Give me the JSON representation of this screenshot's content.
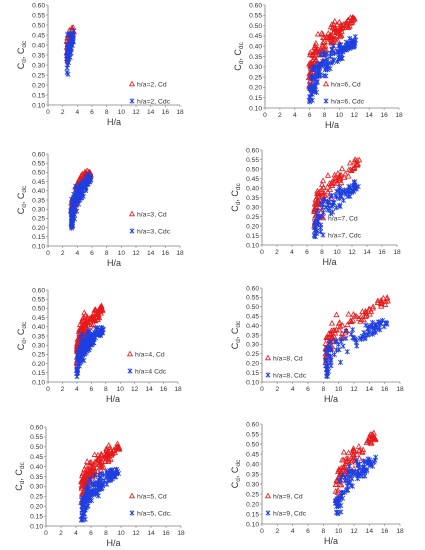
{
  "chart_data": [
    {
      "type": "scatter",
      "h": 2,
      "ylabel_main": "C",
      "ylabel_sub1": "d",
      "ylabel_sep": ", C",
      "ylabel_sub2": "dc",
      "xlabel": "H/a",
      "xlim": [
        0,
        18
      ],
      "ylim": [
        0.1,
        0.6
      ],
      "xticks": [
        "0",
        "2",
        "4",
        "6",
        "8",
        "10",
        "12",
        "14",
        "16",
        "18"
      ],
      "yticks": [
        "0.10",
        "0.15",
        "0.20",
        "0.25",
        "0.30",
        "0.35",
        "0.40",
        "0.45",
        "0.50",
        "0.55",
        "0.60"
      ],
      "legend_position": "center-right",
      "series": [
        {
          "name": "h/a=2, Cd",
          "marker": "triangle",
          "color": "#E8191A"
        },
        {
          "name": "h/a=2, Cdc",
          "marker": "star",
          "color": "#1F3FE0"
        }
      ]
    },
    {
      "type": "scatter",
      "h": 6,
      "ylabel_main": "C",
      "ylabel_sub1": "d",
      "ylabel_sep": ", C",
      "ylabel_sub2": "dc",
      "xlabel": "H/a",
      "xlim": [
        0,
        18
      ],
      "ylim": [
        0.1,
        0.6
      ],
      "xticks": [
        "0",
        "2",
        "4",
        "6",
        "8",
        "10",
        "12",
        "14",
        "16",
        "18"
      ],
      "yticks": [
        "0.10",
        "0.15",
        "0.20",
        "0.25",
        "0.30",
        "0.35",
        "0.40",
        "0.45",
        "0.50",
        "0.55",
        "0.60"
      ],
      "legend_position": "bottom-right",
      "series": [
        {
          "name": "h/a=6, Cd",
          "marker": "triangle",
          "color": "#E8191A"
        },
        {
          "name": "h/a=6, Cdc",
          "marker": "star",
          "color": "#1F3FE0"
        }
      ]
    },
    {
      "type": "scatter",
      "h": 3,
      "ylabel_main": "C",
      "ylabel_sub1": "d",
      "ylabel_sep": ", C",
      "ylabel_sub2": "dc",
      "xlabel": "H/a",
      "xlim": [
        0,
        18
      ],
      "ylim": [
        0.1,
        0.6
      ],
      "xticks": [
        "0",
        "2",
        "4",
        "6",
        "8",
        "10",
        "12",
        "14",
        "16",
        "18"
      ],
      "yticks": [
        "0.10",
        "0.15",
        "0.20",
        "0.25",
        "0.30",
        "0.35",
        "0.40",
        "0.45",
        "0.50",
        "0.55",
        "0.60"
      ],
      "legend_position": "center-right",
      "series": [
        {
          "name": "h/a=3, Cd",
          "marker": "triangle",
          "color": "#E8191A"
        },
        {
          "name": "h/a=3, Cdc",
          "marker": "star",
          "color": "#1F3FE0"
        }
      ]
    },
    {
      "type": "scatter",
      "h": 7,
      "ylabel_main": "C",
      "ylabel_sub1": "d",
      "ylabel_sep": ", C",
      "ylabel_sub2": "dc",
      "xlabel": "H/a",
      "xlim": [
        0,
        18
      ],
      "ylim": [
        0.1,
        0.6
      ],
      "xticks": [
        "0",
        "2",
        "4",
        "6",
        "8",
        "10",
        "12",
        "14",
        "16",
        "18"
      ],
      "yticks": [
        "0.10",
        "0.15",
        "0.20",
        "0.25",
        "0.30",
        "0.35",
        "0.40",
        "0.45",
        "0.50",
        "0.55",
        "0.60"
      ],
      "legend_position": "bottom-right",
      "series": [
        {
          "name": "h/a=7, Cd",
          "marker": "triangle",
          "color": "#E8191A"
        },
        {
          "name": "h/a=7, Cdc",
          "marker": "star",
          "color": "#1F3FE0"
        }
      ]
    },
    {
      "type": "scatter",
      "h": 4,
      "ylabel_main": "C",
      "ylabel_sub1": "d",
      "ylabel_sep": ", C",
      "ylabel_sub2": "dc",
      "xlabel": "H/a",
      "xlim": [
        0,
        18
      ],
      "ylim": [
        0.1,
        0.6
      ],
      "xticks": [
        "0",
        "2",
        "4",
        "6",
        "8",
        "10",
        "12",
        "14",
        "16",
        "18"
      ],
      "yticks": [
        "0.10",
        "0.15",
        "0.20",
        "0.25",
        "0.30",
        "0.35",
        "0.40",
        "0.45",
        "0.50",
        "0.55",
        "0.60"
      ],
      "legend_position": "center-right",
      "series": [
        {
          "name": "h/a=4, Cd",
          "marker": "triangle",
          "color": "#E8191A"
        },
        {
          "name": "h/a=4 Cdc",
          "marker": "star",
          "color": "#1F3FE0"
        }
      ]
    },
    {
      "type": "scatter",
      "h": 8,
      "ylabel_main": "C",
      "ylabel_sub1": "d",
      "ylabel_sep": ", C",
      "ylabel_sub2": "dc",
      "xlabel": "H/a",
      "xlim": [
        0,
        18
      ],
      "ylim": [
        0.1,
        0.6
      ],
      "xticks": [
        "0",
        "2",
        "4",
        "6",
        "8",
        "10",
        "12",
        "14",
        "16",
        "18"
      ],
      "yticks": [
        "0.10",
        "0.15",
        "0.20",
        "0.25",
        "0.30",
        "0.35",
        "0.40",
        "0.45",
        "0.50",
        "0.55",
        "0.60"
      ],
      "legend_position": "center-left",
      "series": [
        {
          "name": "h/a=8, Cd",
          "marker": "triangle",
          "color": "#E8191A"
        },
        {
          "name": "h/a=8, Cdc",
          "marker": "star",
          "color": "#1F3FE0"
        }
      ]
    },
    {
      "type": "scatter",
      "h": 5,
      "ylabel_main": "C",
      "ylabel_sub1": "d",
      "ylabel_sep": ", C",
      "ylabel_sub2": "dc",
      "xlabel": "H/a",
      "xlim": [
        0,
        18
      ],
      "ylim": [
        0.1,
        0.6
      ],
      "xticks": [
        "0",
        "2",
        "4",
        "6",
        "8",
        "10",
        "12",
        "14",
        "16",
        "18"
      ],
      "yticks": [
        "0.10",
        "0.15",
        "0.20",
        "0.25",
        "0.30",
        "0.35",
        "0.40",
        "0.45",
        "0.50",
        "0.55",
        "0.60"
      ],
      "legend_position": "bottom-right",
      "series": [
        {
          "name": "h/a=5, Cd",
          "marker": "triangle",
          "color": "#E8191A"
        },
        {
          "name": "h/a=5, Cdc.",
          "marker": "star",
          "color": "#1F3FE0"
        }
      ]
    },
    {
      "type": "scatter",
      "h": 9,
      "ylabel_main": "C",
      "ylabel_sub1": "d",
      "ylabel_sep": ", C",
      "ylabel_sub2": "dc",
      "xlabel": "H/a",
      "xlim": [
        0,
        18
      ],
      "ylim": [
        0.1,
        0.6
      ],
      "xticks": [
        "0",
        "2",
        "4",
        "6",
        "8",
        "10",
        "12",
        "14",
        "16",
        "18"
      ],
      "yticks": [
        "0.10",
        "0.15",
        "0.20",
        "0.25",
        "0.30",
        "0.35",
        "0.40",
        "0.45",
        "0.50",
        "0.55",
        "0.60"
      ],
      "legend_position": "center-left",
      "series": [
        {
          "name": "h/a=9, Cd",
          "marker": "triangle",
          "color": "#E8191A"
        },
        {
          "name": "h/a=9, Cdc",
          "marker": "star",
          "color": "#1F3FE0"
        }
      ]
    }
  ]
}
